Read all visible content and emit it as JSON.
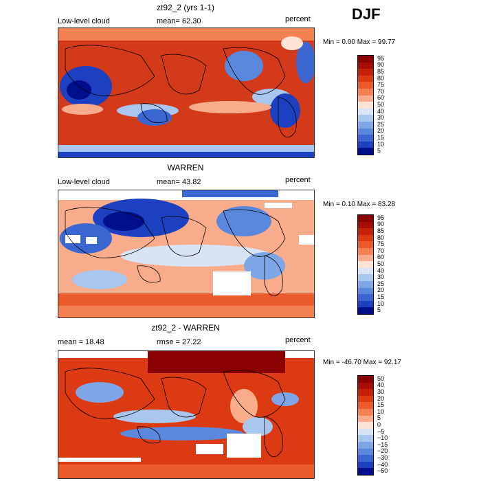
{
  "season": "DJF",
  "panels": [
    {
      "title": "zt92_2 (yrs 1-1)",
      "left_label": "Low-level cloud",
      "center_label": "mean=  62.30",
      "right_label": "percent",
      "minmax": "Min =   0.00 Max =  99.77",
      "colorbar_ticks": [
        "95",
        "90",
        "85",
        "80",
        "75",
        "70",
        "60",
        "50",
        "40",
        "30",
        "25",
        "20",
        "15",
        "10",
        "5"
      ],
      "colors": [
        "#8b0000",
        "#a80c06",
        "#c4200a",
        "#dc3a12",
        "#ea5a2a",
        "#f28050",
        "#f8ac8c",
        "#fde3d6",
        "#d8e4f6",
        "#a9c6ee",
        "#7ea6e6",
        "#5a88dc",
        "#3a66d2",
        "#1c40c0",
        "#00108c"
      ]
    },
    {
      "title": "WARREN",
      "left_label": "Low-level cloud",
      "center_label": "mean=  43.82",
      "right_label": "percent",
      "minmax": "Min =   0.10 Max =  83.28",
      "colorbar_ticks": [
        "95",
        "90",
        "85",
        "80",
        "75",
        "70",
        "60",
        "50",
        "40",
        "30",
        "25",
        "20",
        "15",
        "10",
        "5"
      ],
      "colors": [
        "#8b0000",
        "#a80c06",
        "#c4200a",
        "#dc3a12",
        "#ea5a2a",
        "#f28050",
        "#f8ac8c",
        "#fde3d6",
        "#d8e4f6",
        "#a9c6ee",
        "#7ea6e6",
        "#5a88dc",
        "#3a66d2",
        "#1c40c0",
        "#00108c"
      ]
    },
    {
      "title": "zt92_2 - WARREN",
      "left_label": "mean =  18.48",
      "center_label": "rmse =  27.22",
      "right_label": "percent",
      "minmax": "Min = -46.70 Max =  92.17",
      "colorbar_ticks": [
        "50",
        "40",
        "30",
        "20",
        "15",
        "10",
        "5",
        "0",
        "−5",
        "−10",
        "−15",
        "−20",
        "−30",
        "−40",
        "−50"
      ],
      "colors": [
        "#8b0000",
        "#a80c06",
        "#c4200a",
        "#dc3a12",
        "#ea5a2a",
        "#f28050",
        "#f8ac8c",
        "#fde3d6",
        "#d8e4f6",
        "#a9c6ee",
        "#7ea6e6",
        "#5a88dc",
        "#3a66d2",
        "#1c40c0",
        "#00108c"
      ]
    }
  ]
}
